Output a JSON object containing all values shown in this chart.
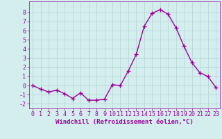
{
  "x": [
    0,
    1,
    2,
    3,
    4,
    5,
    6,
    7,
    8,
    9,
    10,
    11,
    12,
    13,
    14,
    15,
    16,
    17,
    18,
    19,
    20,
    21,
    22,
    23
  ],
  "y": [
    0.0,
    -0.4,
    -0.7,
    -0.5,
    -0.9,
    -1.4,
    -0.8,
    -1.6,
    -1.6,
    -1.5,
    0.1,
    0.0,
    1.6,
    3.4,
    6.5,
    7.9,
    8.3,
    7.8,
    6.3,
    4.3,
    2.5,
    1.4,
    1.0,
    -0.2
  ],
  "line_color": "#990099",
  "marker": "+",
  "markersize": 4,
  "linewidth": 1.0,
  "bg_color": "#d4eeee",
  "grid_color": "#b8d8d8",
  "xlabel": "Windchill (Refroidissement éolien,°C)",
  "xlabel_color": "#990099",
  "tick_color": "#990099",
  "xlim": [
    -0.5,
    23.5
  ],
  "ylim": [
    -2.5,
    9.2
  ],
  "yticks": [
    -2,
    -1,
    0,
    1,
    2,
    3,
    4,
    5,
    6,
    7,
    8
  ],
  "xticks": [
    0,
    1,
    2,
    3,
    4,
    5,
    6,
    7,
    8,
    9,
    10,
    11,
    12,
    13,
    14,
    15,
    16,
    17,
    18,
    19,
    20,
    21,
    22,
    23
  ],
  "label_fontsize": 6.5,
  "tick_fontsize": 6.0
}
